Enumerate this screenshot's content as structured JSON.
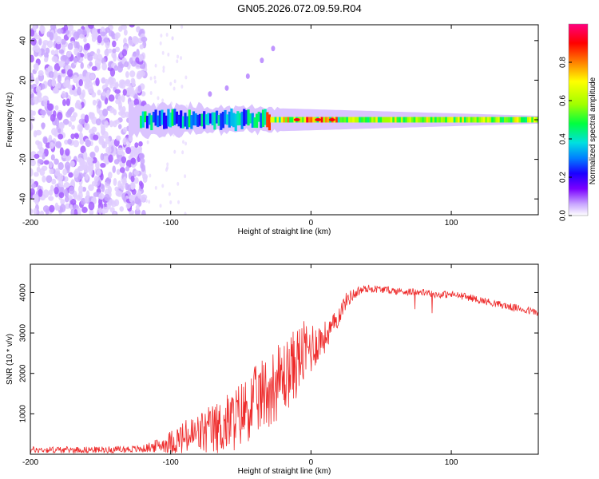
{
  "title": "GN05.2026.072.09.59.R04",
  "chart_data": [
    {
      "type": "heatmap",
      "title": "GN05.2026.072.09.59.R04",
      "xlabel": "Height of straight line (km)",
      "ylabel": "Frequency (Hz)",
      "xlim": [
        -200,
        162
      ],
      "ylim": [
        -48,
        48
      ],
      "xticks": [
        -200,
        -100,
        0,
        100
      ],
      "yticks": [
        -40,
        -20,
        0,
        20,
        40
      ],
      "colorbar": {
        "label": "Normalized spectral amplitude",
        "range": [
          0.0,
          1.0
        ],
        "ticks": [
          "0.0",
          "0.2",
          "0.4",
          "0.6",
          "0.8"
        ],
        "colors": [
          "#ffffff",
          "#c8a6ff",
          "#7a00ff",
          "#1a00ff",
          "#0080ff",
          "#00e0e0",
          "#00ff40",
          "#a0ff00",
          "#ffff00",
          "#ff8000",
          "#ff0000",
          "#ff0080"
        ]
      },
      "features": [
        {
          "name": "broadband noise",
          "x_range": [
            -200,
            -118
          ],
          "frequency_range": [
            -48,
            48
          ],
          "amplitude": 0.1
        },
        {
          "name": "main doppler band",
          "x_range": [
            -130,
            162
          ],
          "frequency_center": 0,
          "frequency_halfwidth": [
            8,
            2
          ],
          "amplitude_peak": 0.95
        },
        {
          "name": "rising trail",
          "points": [
            [
              -72,
              13
            ],
            [
              -60,
              16
            ],
            [
              -45,
              22
            ],
            [
              -35,
              30
            ],
            [
              -27,
              36
            ]
          ]
        }
      ]
    },
    {
      "type": "line",
      "xlabel": "Height of straight line (km)",
      "ylabel": "SNR (10 * v/v)",
      "xlim": [
        -200,
        162
      ],
      "ylim": [
        0,
        4700
      ],
      "xticks": [
        -200,
        -100,
        0,
        100
      ],
      "yticks": [
        1000,
        2000,
        3000,
        4000
      ],
      "series": [
        {
          "name": "SNR",
          "color": "#ee2b2b",
          "envelope_x": [
            -200,
            -150,
            -120,
            -105,
            -95,
            -85,
            -75,
            -65,
            -55,
            -45,
            -35,
            -25,
            -15,
            -10,
            -5,
            0,
            5,
            10,
            15,
            20,
            25,
            30,
            35,
            40,
            50,
            60,
            70,
            80,
            90,
            100,
            110,
            120,
            130,
            140,
            150,
            162
          ],
          "mean_y": [
            110,
            110,
            130,
            250,
            350,
            450,
            550,
            650,
            850,
            1150,
            1450,
            1750,
            2050,
            2300,
            2500,
            2650,
            2780,
            2900,
            3120,
            3450,
            3800,
            3950,
            4050,
            4100,
            4080,
            4040,
            4020,
            4000,
            3950,
            3950,
            3900,
            3820,
            3740,
            3660,
            3590,
            3500
          ],
          "noise_amplitude": [
            80,
            80,
            90,
            200,
            400,
            500,
            600,
            700,
            800,
            850,
            900,
            950,
            900,
            900,
            800,
            700,
            500,
            400,
            300,
            250,
            200,
            150,
            120,
            100,
            90,
            90,
            90,
            90,
            90,
            90,
            90,
            90,
            90,
            90,
            90,
            90
          ]
        }
      ]
    }
  ]
}
